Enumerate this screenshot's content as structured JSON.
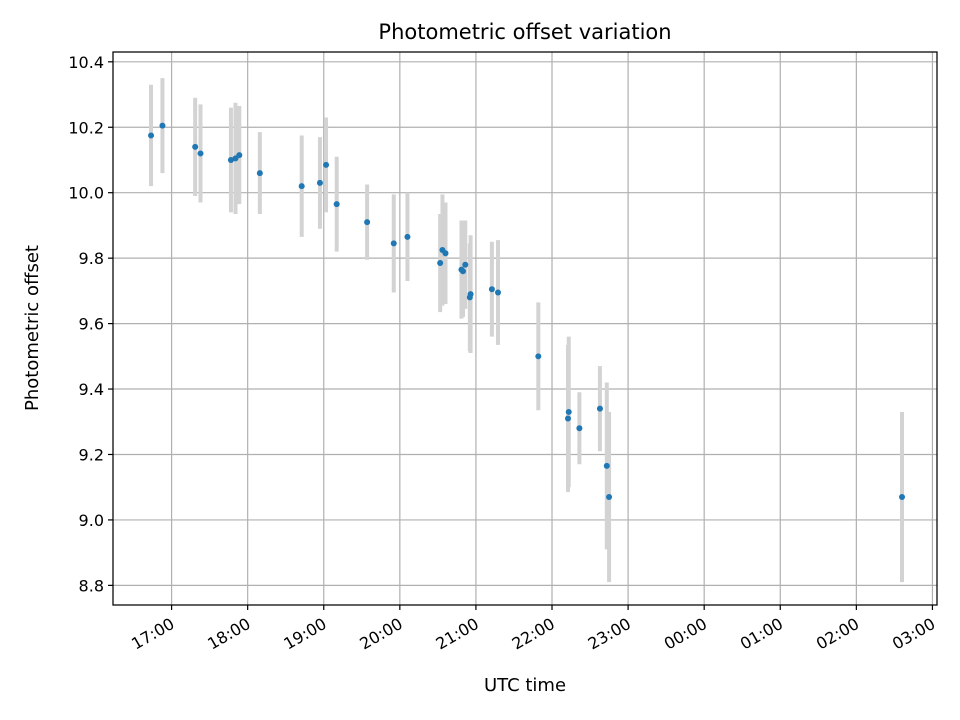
{
  "chart_data": {
    "type": "scatter",
    "title": "Photometric offset variation",
    "xlabel": "UTC time",
    "ylabel": "Photometric offset",
    "x_unit": "UTC time of day, hours (values past 24 are the next day)",
    "xlim": [
      16.23,
      27.06
    ],
    "ylim": [
      8.74,
      10.43
    ],
    "x_ticks": [
      17,
      18,
      19,
      20,
      21,
      22,
      23,
      24,
      25,
      26,
      27
    ],
    "x_tick_labels": [
      "17:00",
      "18:00",
      "19:00",
      "20:00",
      "21:00",
      "22:00",
      "23:00",
      "00:00",
      "01:00",
      "02:00",
      "03:00"
    ],
    "y_ticks": [
      8.8,
      9.0,
      9.2,
      9.4,
      9.6,
      9.8,
      10.0,
      10.2,
      10.4
    ],
    "y_tick_labels": [
      "8.8",
      "9.0",
      "9.2",
      "9.4",
      "9.6",
      "9.8",
      "10.0",
      "10.2",
      "10.4"
    ],
    "grid": true,
    "legend": "none",
    "colors": {
      "points": "#1f77b4",
      "errorbars": "#d3d3d3",
      "grid": "#b0b0b0"
    },
    "points": [
      {
        "x": 16.73,
        "y": 10.175,
        "err": 0.155
      },
      {
        "x": 16.88,
        "y": 10.205,
        "err": 0.145
      },
      {
        "x": 17.31,
        "y": 10.14,
        "err": 0.15
      },
      {
        "x": 17.38,
        "y": 10.12,
        "err": 0.15
      },
      {
        "x": 17.78,
        "y": 10.1,
        "err": 0.16
      },
      {
        "x": 17.84,
        "y": 10.105,
        "err": 0.17
      },
      {
        "x": 17.89,
        "y": 10.115,
        "err": 0.15
      },
      {
        "x": 18.16,
        "y": 10.06,
        "err": 0.125
      },
      {
        "x": 18.71,
        "y": 10.02,
        "err": 0.155
      },
      {
        "x": 18.95,
        "y": 10.03,
        "err": 0.14
      },
      {
        "x": 19.03,
        "y": 10.085,
        "err": 0.145
      },
      {
        "x": 19.17,
        "y": 9.965,
        "err": 0.145
      },
      {
        "x": 19.57,
        "y": 9.91,
        "err": 0.115
      },
      {
        "x": 19.92,
        "y": 9.845,
        "err": 0.15
      },
      {
        "x": 20.1,
        "y": 9.865,
        "err": 0.135
      },
      {
        "x": 20.53,
        "y": 9.785,
        "err": 0.15
      },
      {
        "x": 20.56,
        "y": 9.825,
        "err": 0.17
      },
      {
        "x": 20.6,
        "y": 9.815,
        "err": 0.155
      },
      {
        "x": 20.81,
        "y": 9.765,
        "err": 0.15
      },
      {
        "x": 20.83,
        "y": 9.76,
        "err": 0.14
      },
      {
        "x": 20.86,
        "y": 9.78,
        "err": 0.135
      },
      {
        "x": 20.92,
        "y": 9.68,
        "err": 0.165
      },
      {
        "x": 20.93,
        "y": 9.69,
        "err": 0.18
      },
      {
        "x": 21.21,
        "y": 9.705,
        "err": 0.145
      },
      {
        "x": 21.29,
        "y": 9.695,
        "err": 0.16
      },
      {
        "x": 21.82,
        "y": 9.5,
        "err": 0.165
      },
      {
        "x": 22.21,
        "y": 9.31,
        "err": 0.225
      },
      {
        "x": 22.22,
        "y": 9.33,
        "err": 0.23
      },
      {
        "x": 22.36,
        "y": 9.28,
        "err": 0.11
      },
      {
        "x": 22.63,
        "y": 9.34,
        "err": 0.13
      },
      {
        "x": 22.72,
        "y": 9.165,
        "err": 0.255
      },
      {
        "x": 22.75,
        "y": 9.07,
        "err": 0.26
      },
      {
        "x": 26.6,
        "y": 9.07,
        "err": 0.26
      }
    ]
  }
}
